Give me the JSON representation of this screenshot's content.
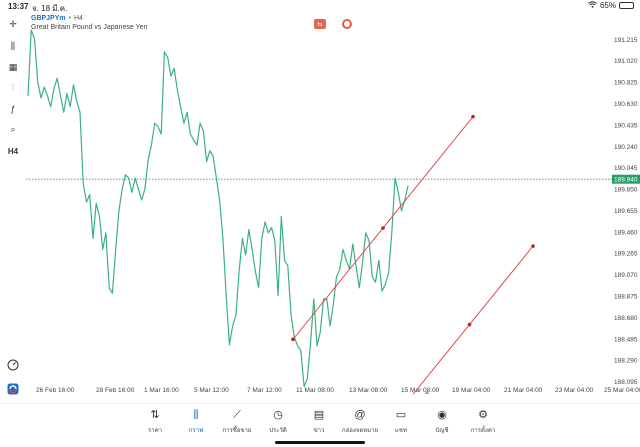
{
  "status": {
    "time": "13:37",
    "date": "จ. 18 มี.ค.",
    "battery": "65%",
    "battery_level": 0.65
  },
  "chart_header": {
    "symbol": "GBPJPYm",
    "separator": "•",
    "timeframe": "H4",
    "description": "Great Britain Pound vs Japanese Yen"
  },
  "left_tools": [
    {
      "name": "crosshair-icon",
      "glyph": "✛"
    },
    {
      "name": "candles-icon",
      "glyph": "⫼"
    },
    {
      "name": "indicators-icon",
      "glyph": "▦"
    },
    {
      "name": "sliders-icon",
      "glyph": "⫶"
    },
    {
      "name": "function-icon",
      "glyph": "ƒ"
    },
    {
      "name": "shapes-icon",
      "glyph": "⌕"
    },
    {
      "name": "timeframe-label",
      "glyph": "H4"
    }
  ],
  "chart_data": {
    "type": "line",
    "symbol": "GBPJPYm",
    "timeframe": "H4",
    "current_price": "189.940",
    "y_ticks": [
      "191.215",
      "191.020",
      "190.825",
      "190.630",
      "190.435",
      "190.240",
      "190.045",
      "189.850",
      "189.655",
      "189.460",
      "189.265",
      "189.070",
      "188.875",
      "188.680",
      "188.485",
      "188.290",
      "188.095"
    ],
    "x_ticks": [
      "26 Feb 16:00",
      "28 Feb 16:00",
      "1 Mar 16:00",
      "5 Mar 12:00",
      "7 Mar 12:00",
      "11 Mar 08:00",
      "13 Mar 08:00",
      "15 Mar 08:00",
      "19 Mar 04:00",
      "21 Mar 04:00",
      "23 Mar 04:00",
      "25 Mar 04:00"
    ],
    "ylim": [
      188.0,
      191.3
    ],
    "price_values": [
      190.7,
      191.3,
      191.22,
      190.83,
      190.68,
      190.78,
      190.7,
      190.6,
      190.77,
      190.86,
      190.7,
      190.55,
      190.72,
      190.6,
      190.8,
      190.65,
      190.55,
      189.9,
      189.73,
      189.8,
      189.4,
      189.72,
      189.6,
      189.3,
      189.45,
      188.95,
      188.9,
      189.3,
      189.65,
      189.85,
      189.98,
      189.95,
      189.82,
      189.95,
      189.85,
      189.75,
      189.85,
      190.12,
      190.25,
      190.45,
      190.42,
      190.35,
      191.1,
      191.05,
      190.88,
      190.95,
      190.75,
      190.6,
      190.45,
      190.55,
      190.35,
      190.3,
      190.25,
      190.45,
      190.38,
      190.1,
      190.2,
      190.15,
      189.95,
      189.75,
      189.4,
      188.9,
      188.43,
      188.6,
      188.7,
      189.1,
      189.4,
      189.25,
      189.48,
      189.3,
      189.1,
      188.95,
      189.4,
      189.55,
      189.45,
      189.5,
      189.38,
      188.88,
      189.6,
      189.2,
      189.15,
      188.7,
      188.5,
      188.42,
      188.38,
      188.05,
      188.12,
      188.45,
      188.85,
      188.42,
      188.55,
      188.85,
      188.85,
      188.6,
      188.8,
      189.05,
      189.12,
      189.3,
      189.2,
      189.12,
      189.35,
      189.15,
      188.95,
      189.18,
      189.45,
      189.38,
      189.05,
      189.0,
      189.2,
      188.92,
      188.98,
      189.08,
      189.45,
      189.95,
      189.82,
      189.65,
      189.75,
      189.88
    ],
    "trend_lines": [
      {
        "x_start": "11 Mar 00:00",
        "y_start": 188.48,
        "x_end": "18 Mar 16:00",
        "y_end": 190.51
      },
      {
        "x_start": "15 Mar 20:00",
        "y_start": 187.9,
        "x_end": "21 Mar 08:00",
        "y_end": 189.33
      }
    ],
    "price_line_color": "#3cb082",
    "trend_line_color": "#e03c3c",
    "ask_line_color": "#2a9d6a"
  },
  "bottom_nav": [
    {
      "id": "quotes",
      "label": "ราคา",
      "icon": "arrows-icon",
      "glyph": "⇅",
      "active": false
    },
    {
      "id": "chart",
      "label": "กราฟ",
      "icon": "candles-icon",
      "glyph": "⫼",
      "active": true
    },
    {
      "id": "trade",
      "label": "การซื้อขาย",
      "icon": "trade-chart-icon",
      "glyph": "⟋",
      "active": false
    },
    {
      "id": "history",
      "label": "ประวัติ",
      "icon": "history-icon",
      "glyph": "◷",
      "active": false
    },
    {
      "id": "news",
      "label": "ข่าว",
      "icon": "news-icon",
      "glyph": "▤",
      "active": false
    },
    {
      "id": "mailbox",
      "label": "กล่องจดหมาย",
      "icon": "at-icon",
      "glyph": "@",
      "active": false
    },
    {
      "id": "chat",
      "label": "แชท",
      "icon": "chat-icon",
      "glyph": "▭",
      "active": false
    },
    {
      "id": "account",
      "label": "บัญชี",
      "icon": "account-icon",
      "glyph": "◉",
      "active": false
    },
    {
      "id": "settings",
      "label": "การตั้งค่า",
      "icon": "gear-icon",
      "glyph": "⚙",
      "active": false
    }
  ]
}
